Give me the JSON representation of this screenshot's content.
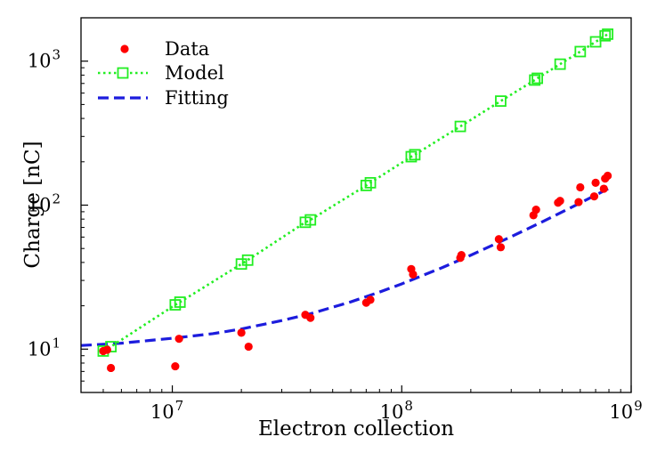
{
  "chart_data": {
    "type": "scatter",
    "xlabel": "Electron collection",
    "ylabel": "Charge [nC]",
    "xscale": "log",
    "yscale": "log",
    "xlim": [
      4000000,
      1000000000
    ],
    "ylim": [
      5,
      2000
    ],
    "x_ticks": [
      {
        "value": 10000000,
        "base": "10",
        "exp": "7"
      },
      {
        "value": 100000000,
        "base": "10",
        "exp": "8"
      },
      {
        "value": 1000000000,
        "base": "10",
        "exp": "9"
      }
    ],
    "y_ticks": [
      {
        "value": 10,
        "base": "10",
        "exp": "1"
      },
      {
        "value": 100,
        "base": "10",
        "exp": "2"
      },
      {
        "value": 1000,
        "base": "10",
        "exp": "3"
      }
    ],
    "legend_position": "top-left",
    "series": [
      {
        "name": "Data",
        "kind": "scatter",
        "color": "#ff0000",
        "x": [
          5000000,
          5200000,
          5400000,
          10300000,
          10700000,
          20000000,
          21500000,
          38000000,
          40000000,
          70000000,
          73000000,
          110000000,
          112000000,
          180000000,
          182000000,
          265000000,
          270000000,
          375000000,
          385000000,
          480000000,
          490000000,
          590000000,
          600000000,
          690000000,
          700000000,
          760000000,
          770000000,
          790000000
        ],
        "y": [
          9.7,
          9.9,
          7.4,
          7.6,
          11.8,
          13.0,
          10.4,
          17.3,
          16.5,
          21.0,
          22.0,
          36.0,
          33.0,
          43.0,
          45.0,
          58.0,
          51.0,
          85.0,
          93.0,
          104.0,
          107.0,
          105.0,
          133.0,
          115.0,
          143.0,
          130.0,
          153.0,
          160.0
        ]
      },
      {
        "name": "Model",
        "kind": "line",
        "color": "#22ee22",
        "x": [
          5000000,
          5400000,
          10300000,
          10800000,
          20000000,
          21300000,
          38000000,
          40000000,
          70000000,
          73000000,
          110000000,
          114000000,
          180000000,
          270000000,
          380000000,
          390000000,
          490000000,
          600000000,
          700000000,
          770000000,
          790000000
        ],
        "y": [
          9.7,
          10.4,
          20.3,
          21.2,
          39.0,
          41.5,
          76.0,
          79.0,
          137.0,
          143.0,
          217.0,
          224.0,
          352.0,
          528.0,
          739.0,
          760.0,
          953.0,
          1165.0,
          1362.0,
          1500.0,
          1540.0
        ]
      },
      {
        "name": "Fitting",
        "kind": "line",
        "color": "#1c1cdd",
        "x": [
          4000000,
          5000000,
          6000000,
          8000000,
          10000000,
          15000000,
          20000000,
          30000000,
          40000000,
          60000000,
          80000000,
          100000000,
          150000000,
          200000000,
          300000000,
          400000000,
          500000000,
          600000000,
          700000000,
          800000000
        ],
        "y": [
          10.6,
          10.8,
          11.0,
          11.5,
          11.9,
          12.8,
          13.8,
          15.8,
          17.6,
          21.3,
          24.9,
          28.4,
          36.8,
          44.9,
          60.4,
          75.2,
          89.6,
          103.6,
          117.4,
          131.0
        ]
      }
    ]
  }
}
